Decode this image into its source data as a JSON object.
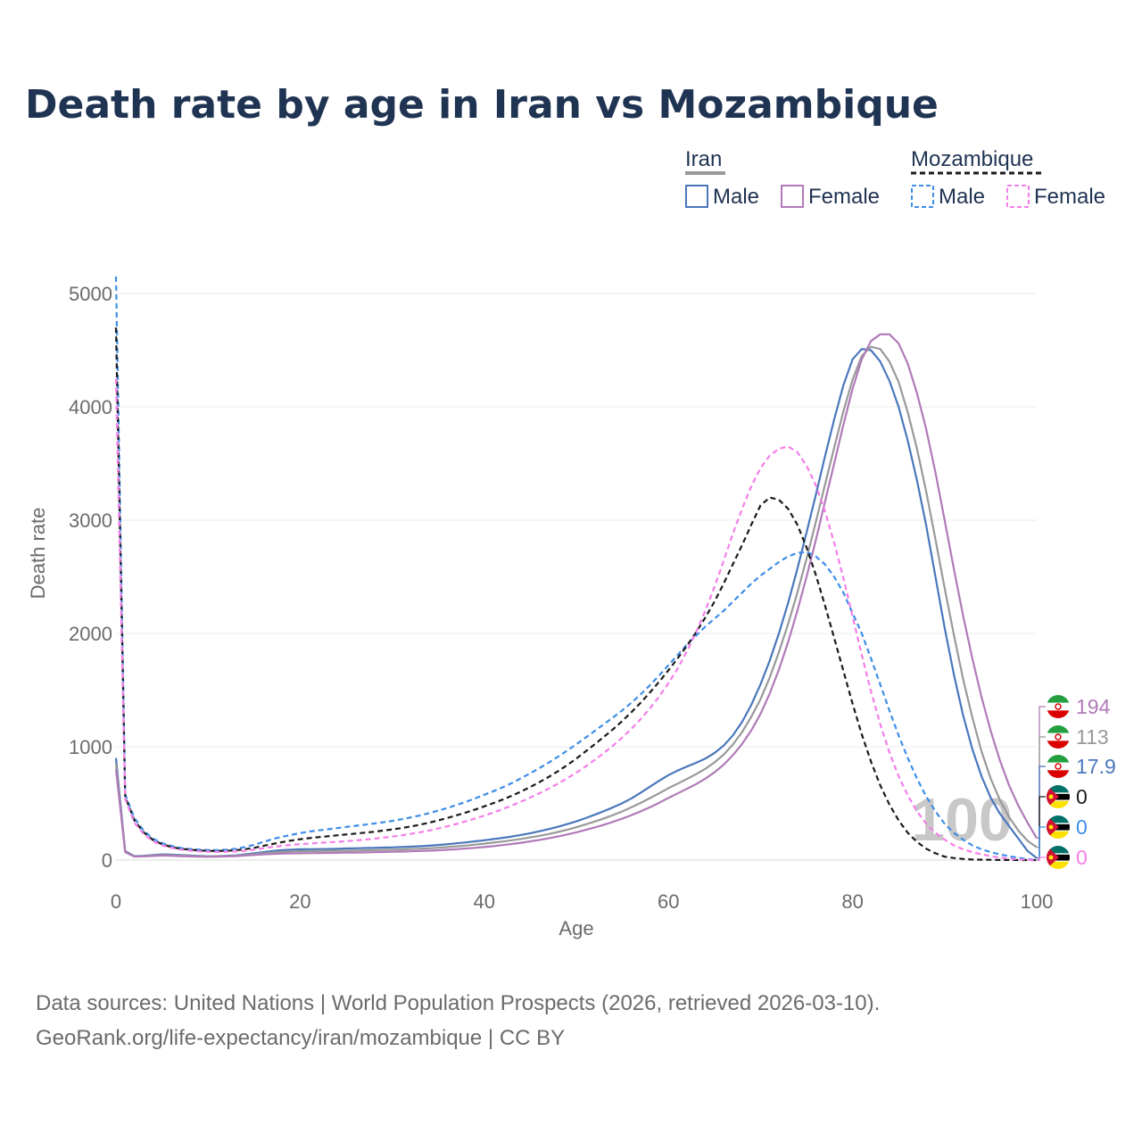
{
  "chart_data": {
    "type": "line",
    "title": "Death rate by age in Iran vs Mozambique",
    "xlabel": "Age",
    "ylabel": "Death rate",
    "xlim": [
      0,
      100
    ],
    "ylim": [
      0,
      5000
    ],
    "x_ticks": [
      "0",
      "20",
      "40",
      "60",
      "80",
      "100"
    ],
    "y_ticks": [
      "0",
      "1000",
      "2000",
      "3000",
      "4000",
      "5000"
    ],
    "grid": true,
    "watermark": "100",
    "legend": {
      "groups": [
        {
          "name": "Iran",
          "items": [
            "Male",
            "Female"
          ]
        },
        {
          "name": "Mozambique",
          "items": [
            "Male",
            "Female"
          ]
        }
      ],
      "placement": "top-right"
    },
    "x": [
      0,
      1,
      2,
      3,
      4,
      5,
      6,
      7,
      8,
      9,
      10,
      11,
      12,
      13,
      14,
      15,
      16,
      17,
      18,
      19,
      20,
      21,
      22,
      23,
      24,
      25,
      26,
      27,
      28,
      29,
      30,
      31,
      32,
      33,
      34,
      35,
      36,
      37,
      38,
      39,
      40,
      41,
      42,
      43,
      44,
      45,
      46,
      47,
      48,
      49,
      50,
      51,
      52,
      53,
      54,
      55,
      56,
      57,
      58,
      59,
      60,
      61,
      62,
      63,
      64,
      65,
      66,
      67,
      68,
      69,
      70,
      71,
      72,
      73,
      74,
      75,
      76,
      77,
      78,
      79,
      80,
      81,
      82,
      83,
      84,
      85,
      86,
      87,
      88,
      89,
      90,
      91,
      92,
      93,
      94,
      95,
      96,
      97,
      98,
      99,
      100
    ],
    "series": [
      {
        "name": "Iran Male",
        "country": "Iran",
        "sex": "Male",
        "color": "#4a77bb",
        "dash": false,
        "end_label": "17.9",
        "values": [
          900,
          80,
          35,
          38,
          45,
          50,
          48,
          44,
          40,
          36,
          34,
          35,
          38,
          42,
          50,
          60,
          70,
          80,
          88,
          92,
          95,
          96,
          97,
          98,
          100,
          102,
          104,
          106,
          108,
          110,
          112,
          115,
          118,
          122,
          127,
          133,
          140,
          148,
          156,
          165,
          175,
          185,
          196,
          208,
          222,
          237,
          254,
          273,
          294,
          317,
          342,
          370,
          400,
          432,
          466,
          502,
          545,
          595,
          648,
          700,
          750,
          790,
          825,
          858,
          895,
          945,
          1010,
          1100,
          1220,
          1370,
          1550,
          1760,
          2000,
          2270,
          2570,
          2890,
          3220,
          3560,
          3890,
          4190,
          4420,
          4510,
          4500,
          4400,
          4230,
          4000,
          3700,
          3350,
          2950,
          2500,
          2050,
          1640,
          1280,
          980,
          740,
          550,
          410,
          300,
          190,
          80,
          17.9
        ]
      },
      {
        "name": "Iran Both",
        "country": "Iran",
        "sex": "Both",
        "color": "#999999",
        "dash": false,
        "end_label": "113",
        "values": [
          850,
          75,
          32,
          35,
          40,
          45,
          43,
          40,
          36,
          33,
          31,
          32,
          35,
          38,
          45,
          52,
          60,
          67,
          72,
          76,
          78,
          79,
          80,
          81,
          82,
          83,
          84,
          86,
          88,
          90,
          92,
          94,
          97,
          100,
          104,
          109,
          115,
          121,
          128,
          136,
          145,
          154,
          164,
          175,
          187,
          200,
          214,
          230,
          248,
          268,
          290,
          314,
          340,
          368,
          398,
          430,
          466,
          505,
          547,
          590,
          635,
          675,
          715,
          758,
          805,
          862,
          930,
          1020,
          1130,
          1265,
          1420,
          1610,
          1835,
          2085,
          2360,
          2660,
          2980,
          3310,
          3640,
          3960,
          4240,
          4450,
          4530,
          4510,
          4400,
          4220,
          3950,
          3630,
          3250,
          2830,
          2400,
          1990,
          1600,
          1260,
          960,
          720,
          530,
          380,
          260,
          170,
          113
        ]
      },
      {
        "name": "Iran Female",
        "country": "Iran",
        "sex": "Female",
        "color": "#b07ab8",
        "dash": false,
        "end_label": "194",
        "values": [
          800,
          70,
          30,
          32,
          36,
          40,
          38,
          35,
          32,
          30,
          29,
          30,
          32,
          35,
          40,
          45,
          50,
          54,
          57,
          59,
          60,
          61,
          62,
          63,
          64,
          65,
          66,
          67,
          69,
          71,
          73,
          75,
          77,
          80,
          83,
          87,
          91,
          96,
          102,
          108,
          115,
          123,
          132,
          142,
          153,
          165,
          178,
          192,
          208,
          226,
          245,
          266,
          288,
          312,
          338,
          366,
          397,
          430,
          467,
          506,
          548,
          588,
          628,
          670,
          718,
          774,
          842,
          925,
          1025,
          1145,
          1290,
          1470,
          1680,
          1925,
          2200,
          2500,
          2820,
          3160,
          3500,
          3840,
          4160,
          4420,
          4580,
          4640,
          4640,
          4560,
          4380,
          4120,
          3800,
          3420,
          3000,
          2570,
          2160,
          1780,
          1440,
          1140,
          880,
          660,
          480,
          330,
          194
        ]
      },
      {
        "name": "Mozambique Male",
        "country": "Mozambique",
        "sex": "Male",
        "color": "#3d8ee8",
        "dash": true,
        "end_label": "0",
        "values": [
          5150,
          580,
          370,
          260,
          190,
          150,
          125,
          108,
          98,
          92,
          88,
          88,
          92,
          100,
          115,
          135,
          160,
          185,
          205,
          222,
          238,
          252,
          262,
          272,
          282,
          292,
          302,
          312,
          322,
          334,
          346,
          360,
          376,
          394,
          414,
          436,
          460,
          486,
          514,
          544,
          576,
          608,
          642,
          680,
          722,
          766,
          812,
          860,
          912,
          966,
          1022,
          1080,
          1140,
          1200,
          1260,
          1322,
          1390,
          1464,
          1544,
          1630,
          1720,
          1810,
          1900,
          1980,
          2060,
          2130,
          2200,
          2280,
          2360,
          2440,
          2510,
          2570,
          2630,
          2680,
          2710,
          2720,
          2680,
          2610,
          2500,
          2360,
          2180,
          2000,
          1780,
          1550,
          1320,
          1100,
          900,
          720,
          560,
          430,
          320,
          240,
          180,
          130,
          95,
          70,
          50,
          35,
          20,
          10,
          0
        ]
      },
      {
        "name": "Mozambique Both",
        "country": "Mozambique",
        "sex": "Both",
        "color": "#1a1a1a",
        "dash": true,
        "end_label": "0",
        "values": [
          4700,
          560,
          350,
          245,
          178,
          140,
          116,
          100,
          91,
          85,
          81,
          80,
          82,
          87,
          96,
          108,
          125,
          142,
          158,
          172,
          184,
          194,
          202,
          210,
          218,
          226,
          234,
          242,
          250,
          260,
          270,
          282,
          296,
          312,
          330,
          350,
          372,
          395,
          420,
          446,
          474,
          503,
          534,
          568,
          605,
          645,
          688,
          734,
          784,
          838,
          896,
          958,
          1022,
          1088,
          1156,
          1228,
          1306,
          1390,
          1480,
          1575,
          1675,
          1780,
          1890,
          2010,
          2140,
          2280,
          2440,
          2610,
          2780,
          2960,
          3130,
          3200,
          3180,
          3100,
          2960,
          2760,
          2520,
          2250,
          1960,
          1670,
          1380,
          1110,
          870,
          660,
          490,
          350,
          240,
          160,
          100,
          60,
          30,
          18,
          10,
          5,
          3,
          2,
          1,
          1,
          0,
          0,
          0
        ]
      },
      {
        "name": "Mozambique Female",
        "country": "Mozambique",
        "sex": "Female",
        "color": "#f47ee8",
        "dash": true,
        "end_label": "0",
        "values": [
          4250,
          540,
          330,
          230,
          166,
          130,
          108,
          92,
          84,
          78,
          74,
          72,
          73,
          76,
          82,
          92,
          104,
          116,
          126,
          134,
          140,
          146,
          151,
          156,
          161,
          167,
          173,
          180,
          188,
          197,
          207,
          218,
          231,
          245,
          261,
          279,
          298,
          319,
          342,
          366,
          392,
          420,
          450,
          482,
          516,
          552,
          590,
          631,
          675,
          722,
          772,
          826,
          884,
          946,
          1012,
          1082,
          1160,
          1245,
          1340,
          1445,
          1560,
          1690,
          1840,
          2010,
          2200,
          2410,
          2640,
          2880,
          3100,
          3300,
          3460,
          3570,
          3630,
          3650,
          3600,
          3480,
          3310,
          3080,
          2800,
          2490,
          2150,
          1810,
          1490,
          1200,
          950,
          740,
          570,
          430,
          320,
          240,
          180,
          130,
          95,
          70,
          50,
          35,
          22,
          13,
          7,
          3,
          0
        ]
      }
    ]
  },
  "footer": {
    "source_line": "Data sources: United Nations | World Population Prospects (2026, retrieved 2026-03-10).",
    "url_line": "GeoRank.org/life-expectancy/iran/mozambique | CC BY"
  }
}
